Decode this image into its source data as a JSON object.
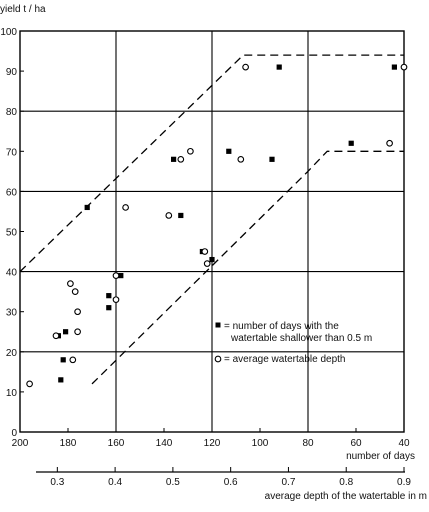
{
  "chart_data": {
    "type": "scatter",
    "ylabel": "yield t / ha",
    "xlabel": "number of days",
    "x2label": "average depth of the watertable in m",
    "y_ticks": [
      0,
      10,
      20,
      30,
      40,
      50,
      60,
      70,
      80,
      90,
      100
    ],
    "x_ticks": [
      200,
      180,
      160,
      140,
      120,
      100,
      80,
      60,
      40
    ],
    "x2_ticks": [
      "0.3",
      "0.4",
      "0.5",
      "0.6",
      "0.7",
      "0.8",
      "0.9"
    ],
    "x2_range": [
      0.27,
      0.9
    ],
    "xlim": [
      200,
      40
    ],
    "ylim": [
      0,
      100
    ],
    "grid": true,
    "legend": [
      {
        "marker": "filled-square",
        "text": "= number of days with the watertable shallower than 0.5 m"
      },
      {
        "marker": "open-circle",
        "text": "= average watertable depth"
      }
    ],
    "series": [
      {
        "marker": "filled-square",
        "points": [
          [
            183,
            13
          ],
          [
            182,
            18
          ],
          [
            181,
            25
          ],
          [
            184,
            24
          ],
          [
            163,
            31
          ],
          [
            163,
            34
          ],
          [
            172,
            56
          ],
          [
            158,
            39
          ],
          [
            136,
            68
          ],
          [
            133,
            54
          ],
          [
            124,
            45
          ],
          [
            120,
            43
          ],
          [
            113,
            70
          ],
          [
            95,
            68
          ],
          [
            92,
            91
          ],
          [
            62,
            72
          ],
          [
            44,
            91
          ]
        ]
      },
      {
        "marker": "open-circle",
        "points": [
          [
            196,
            12
          ],
          [
            185,
            24
          ],
          [
            178,
            18
          ],
          [
            176,
            25
          ],
          [
            176,
            30
          ],
          [
            177,
            35
          ],
          [
            179,
            37
          ],
          [
            160,
            39
          ],
          [
            160,
            33
          ],
          [
            156,
            56
          ],
          [
            133,
            68
          ],
          [
            129,
            70
          ],
          [
            138,
            54
          ],
          [
            123,
            45
          ],
          [
            122,
            42
          ],
          [
            108,
            68
          ],
          [
            106,
            91
          ],
          [
            46,
            72
          ],
          [
            40,
            91
          ]
        ]
      }
    ],
    "envelope_upper": [
      [
        200,
        40
      ],
      [
        107,
        94
      ],
      [
        40,
        94
      ]
    ],
    "envelope_lower": [
      [
        170,
        12
      ],
      [
        80,
        65
      ],
      [
        72,
        70
      ],
      [
        40,
        70
      ]
    ]
  }
}
